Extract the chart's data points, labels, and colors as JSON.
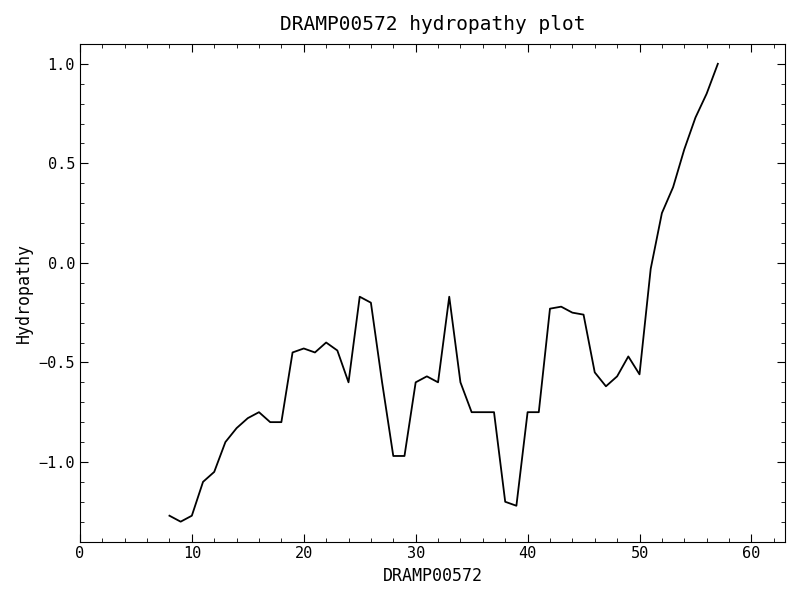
{
  "title": "DRAMP00572 hydropathy plot",
  "xlabel": "DRAMP00572",
  "ylabel": "Hydropathy",
  "xlim": [
    0,
    63
  ],
  "ylim": [
    -1.4,
    1.1
  ],
  "xticks": [
    0,
    10,
    20,
    30,
    40,
    50,
    60
  ],
  "yticks": [
    -1.0,
    -0.5,
    0.0,
    0.5,
    1.0
  ],
  "line_color": "#000000",
  "line_width": 1.3,
  "bg_color": "#ffffff",
  "x": [
    8,
    9,
    10,
    11,
    12,
    13,
    14,
    15,
    16,
    17,
    18,
    19,
    20,
    21,
    22,
    23,
    24,
    25,
    26,
    27,
    28,
    29,
    30,
    31,
    32,
    33,
    34,
    35,
    36,
    37,
    38,
    39,
    40,
    41,
    42,
    43,
    44,
    45,
    46,
    47,
    48,
    49,
    50,
    51,
    52,
    53,
    54,
    55,
    56,
    57
  ],
  "y": [
    -1.27,
    -1.3,
    -1.27,
    -1.1,
    -1.05,
    -0.9,
    -0.83,
    -0.78,
    -0.75,
    -0.8,
    -0.8,
    -0.45,
    -0.43,
    -0.45,
    -0.4,
    -0.44,
    -0.6,
    -0.17,
    -0.2,
    -0.6,
    -0.97,
    -0.97,
    -0.6,
    -0.57,
    -0.6,
    -0.17,
    -0.6,
    -0.75,
    -0.75,
    -0.75,
    -1.2,
    -1.22,
    -0.75,
    -0.75,
    -0.23,
    -0.22,
    -0.25,
    -0.26,
    -0.55,
    -0.62,
    -0.57,
    -0.47,
    -0.56,
    -0.03,
    0.25,
    0.38,
    0.57,
    0.73,
    0.85,
    1.0
  ],
  "font_family": "monospace",
  "title_fontsize": 14,
  "label_fontsize": 12,
  "tick_fontsize": 11
}
